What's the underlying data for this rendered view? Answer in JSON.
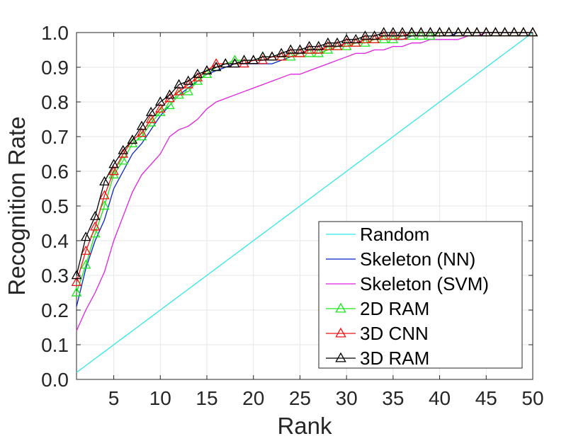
{
  "chart_data": {
    "type": "line",
    "xlabel": "Rank",
    "ylabel": "Recognition Rate",
    "xlim": [
      1,
      50
    ],
    "ylim": [
      0,
      1
    ],
    "xticks": [
      5,
      10,
      15,
      20,
      25,
      30,
      35,
      40,
      45,
      50
    ],
    "xtick_labels": [
      "5",
      "10",
      "15",
      "20",
      "25",
      "30",
      "35",
      "40",
      "45",
      "50"
    ],
    "yticks": [
      0,
      0.1,
      0.2,
      0.3,
      0.4,
      0.5,
      0.6,
      0.7,
      0.8,
      0.9,
      1.0
    ],
    "ytick_labels": [
      "0.0",
      "0.1",
      "0.2",
      "0.3",
      "0.4",
      "0.5",
      "0.6",
      "0.7",
      "0.8",
      "0.9",
      "1.0"
    ],
    "grid": true,
    "legend_position": "bottom-right",
    "series": [
      {
        "name": "Random",
        "color": "#33e6e6",
        "marker": "none",
        "values": [
          0.02,
          0.04,
          0.06,
          0.08,
          0.1,
          0.12,
          0.14,
          0.16,
          0.18,
          0.2,
          0.22,
          0.24,
          0.26,
          0.28,
          0.3,
          0.32,
          0.34,
          0.36,
          0.38,
          0.4,
          0.42,
          0.44,
          0.46,
          0.48,
          0.5,
          0.52,
          0.54,
          0.56,
          0.58,
          0.6,
          0.62,
          0.64,
          0.66,
          0.68,
          0.7,
          0.72,
          0.74,
          0.76,
          0.78,
          0.8,
          0.82,
          0.84,
          0.86,
          0.88,
          0.9,
          0.92,
          0.94,
          0.96,
          0.98,
          1.0
        ]
      },
      {
        "name": "Skeleton (NN)",
        "color": "#0022cc",
        "marker": "none",
        "values": [
          0.21,
          0.32,
          0.4,
          0.46,
          0.55,
          0.6,
          0.65,
          0.68,
          0.72,
          0.76,
          0.79,
          0.82,
          0.84,
          0.86,
          0.88,
          0.89,
          0.9,
          0.91,
          0.91,
          0.91,
          0.91,
          0.91,
          0.92,
          0.93,
          0.94,
          0.95,
          0.95,
          0.96,
          0.96,
          0.97,
          0.97,
          0.98,
          0.98,
          0.98,
          0.98,
          0.98,
          0.99,
          0.99,
          0.99,
          0.99,
          0.99,
          1.0,
          1.0,
          1.0,
          1.0,
          1.0,
          1.0,
          1.0,
          1.0,
          1.0
        ]
      },
      {
        "name": "Skeleton (SVM)",
        "color": "#e020e0",
        "marker": "none",
        "values": [
          0.14,
          0.2,
          0.25,
          0.31,
          0.4,
          0.47,
          0.54,
          0.59,
          0.62,
          0.65,
          0.7,
          0.72,
          0.73,
          0.75,
          0.78,
          0.8,
          0.81,
          0.82,
          0.83,
          0.84,
          0.85,
          0.86,
          0.87,
          0.88,
          0.88,
          0.89,
          0.9,
          0.91,
          0.92,
          0.93,
          0.94,
          0.94,
          0.95,
          0.95,
          0.96,
          0.96,
          0.97,
          0.97,
          0.98,
          0.98,
          0.98,
          0.98,
          0.99,
          0.99,
          1.0,
          1.0,
          1.0,
          1.0,
          1.0,
          1.0
        ]
      },
      {
        "name": "2D RAM",
        "color": "#1ee61e",
        "marker": "triangle",
        "values": [
          0.25,
          0.33,
          0.42,
          0.5,
          0.59,
          0.63,
          0.68,
          0.7,
          0.74,
          0.77,
          0.79,
          0.82,
          0.83,
          0.86,
          0.88,
          0.9,
          0.91,
          0.92,
          0.92,
          0.92,
          0.93,
          0.93,
          0.93,
          0.93,
          0.94,
          0.94,
          0.94,
          0.95,
          0.96,
          0.96,
          0.97,
          0.97,
          0.98,
          0.98,
          0.98,
          0.99,
          0.99,
          0.99,
          0.99,
          1.0,
          1.0,
          1.0,
          1.0,
          1.0,
          1.0,
          1.0,
          1.0,
          1.0,
          1.0,
          1.0
        ]
      },
      {
        "name": "3D CNN",
        "color": "#f01414",
        "marker": "triangle",
        "values": [
          0.28,
          0.37,
          0.44,
          0.53,
          0.6,
          0.65,
          0.69,
          0.71,
          0.75,
          0.78,
          0.81,
          0.83,
          0.85,
          0.87,
          0.89,
          0.91,
          0.91,
          0.91,
          0.91,
          0.92,
          0.92,
          0.93,
          0.93,
          0.94,
          0.94,
          0.95,
          0.95,
          0.96,
          0.96,
          0.97,
          0.97,
          0.98,
          0.98,
          0.99,
          0.99,
          0.99,
          1.0,
          1.0,
          1.0,
          1.0,
          1.0,
          1.0,
          1.0,
          1.0,
          1.0,
          1.0,
          1.0,
          1.0,
          1.0,
          1.0
        ]
      },
      {
        "name": "3D RAM",
        "color": "#000000",
        "marker": "triangle",
        "values": [
          0.3,
          0.41,
          0.47,
          0.57,
          0.62,
          0.66,
          0.69,
          0.73,
          0.77,
          0.8,
          0.82,
          0.85,
          0.86,
          0.88,
          0.89,
          0.9,
          0.91,
          0.91,
          0.92,
          0.92,
          0.93,
          0.93,
          0.94,
          0.95,
          0.95,
          0.96,
          0.96,
          0.97,
          0.97,
          0.98,
          0.98,
          0.99,
          0.99,
          1.0,
          1.0,
          1.0,
          1.0,
          1.0,
          1.0,
          1.0,
          1.0,
          1.0,
          1.0,
          1.0,
          1.0,
          1.0,
          1.0,
          1.0,
          1.0,
          1.0
        ]
      }
    ]
  }
}
